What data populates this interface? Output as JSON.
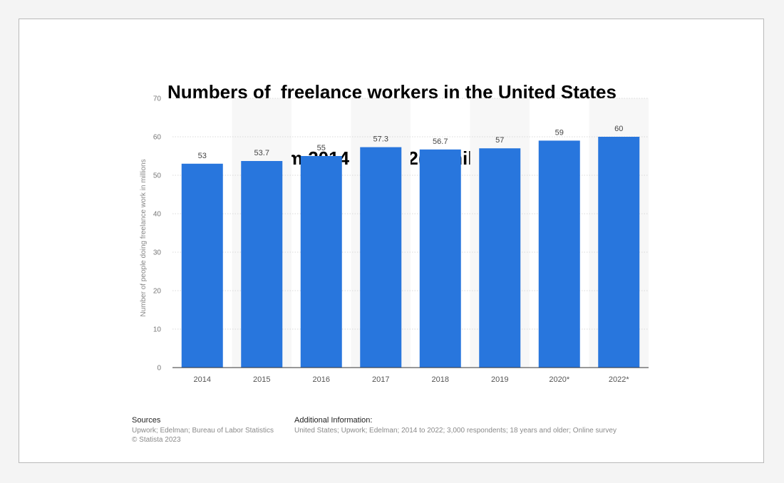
{
  "chart_data": {
    "type": "bar",
    "title_line1": "Numbers of  freelance workers in the United States",
    "title_line2": "from 2014 to 2022(in millions)",
    "ylabel": "Number of people doing freelance work in millions",
    "xlabel": "",
    "categories": [
      "2014",
      "2015",
      "2016",
      "2017",
      "2018",
      "2019",
      "2020*",
      "2022*"
    ],
    "values": [
      53,
      53.7,
      55,
      57.3,
      56.7,
      57,
      59,
      60
    ],
    "value_labels": [
      "53",
      "53.7",
      "55",
      "57.3",
      "56.7",
      "57",
      "59",
      "60"
    ],
    "ylim": [
      0,
      70
    ],
    "yticks": [
      0,
      10,
      20,
      30,
      40,
      50,
      60,
      70
    ],
    "grid": true,
    "bar_color": "#2876dd",
    "alt_band_color": "#f7f7f7"
  },
  "footer": {
    "sources_heading": "Sources",
    "sources_line1": "Upwork; Edelman; Bureau of Labor Statistics",
    "sources_line2": "© Statista 2023",
    "info_heading": "Additional Information:",
    "info_line1": "United States; Upwork; Edelman; 2014 to 2022; 3,000 respondents; 18 years and older; Online survey"
  }
}
